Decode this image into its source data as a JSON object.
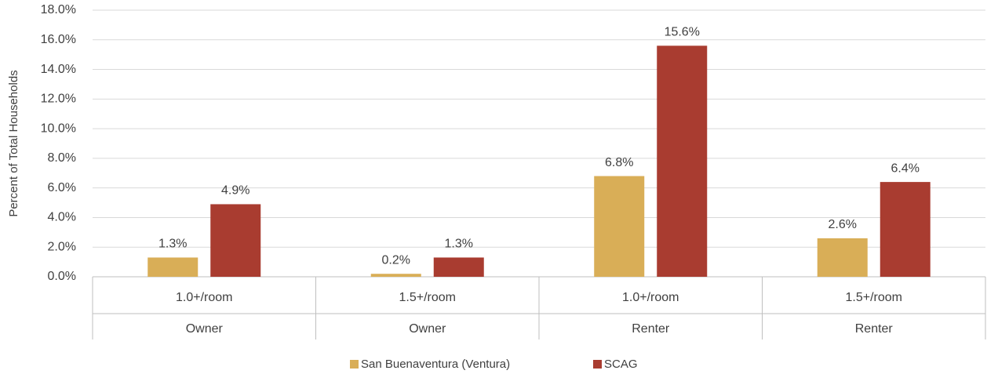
{
  "chart_data": {
    "type": "bar",
    "y_label": "Percent of Total Households",
    "categories": [
      "1.0+/room",
      "1.5+/room",
      "1.0+/room",
      "1.5+/room"
    ],
    "category_groups": [
      "Owner",
      "Owner",
      "Renter",
      "Renter"
    ],
    "series": [
      {
        "name": "San Buenaventura (Ventura)",
        "color": "#d9ae57",
        "values": [
          1.3,
          0.2,
          6.8,
          2.6
        ],
        "value_labels": [
          "1.3%",
          "0.2%",
          "6.8%",
          "2.6%"
        ]
      },
      {
        "name": "SCAG",
        "color": "#a93c30",
        "values": [
          4.9,
          1.3,
          15.6,
          6.4
        ],
        "value_labels": [
          "4.9%",
          "1.3%",
          "15.6%",
          "6.4%"
        ]
      }
    ],
    "ylim": [
      0,
      18
    ],
    "yticks": [
      {
        "value": 0,
        "label": "0.0%"
      },
      {
        "value": 2,
        "label": "2.0%"
      },
      {
        "value": 4,
        "label": "4.0%"
      },
      {
        "value": 6,
        "label": "6.0%"
      },
      {
        "value": 8,
        "label": "8.0%"
      },
      {
        "value": 10,
        "label": "10.0%"
      },
      {
        "value": 12,
        "label": "12.0%"
      },
      {
        "value": 14,
        "label": "14.0%"
      },
      {
        "value": 16,
        "label": "16.0%"
      },
      {
        "value": 18,
        "label": "18.0%"
      }
    ],
    "grid": true,
    "legend": "bottom"
  }
}
